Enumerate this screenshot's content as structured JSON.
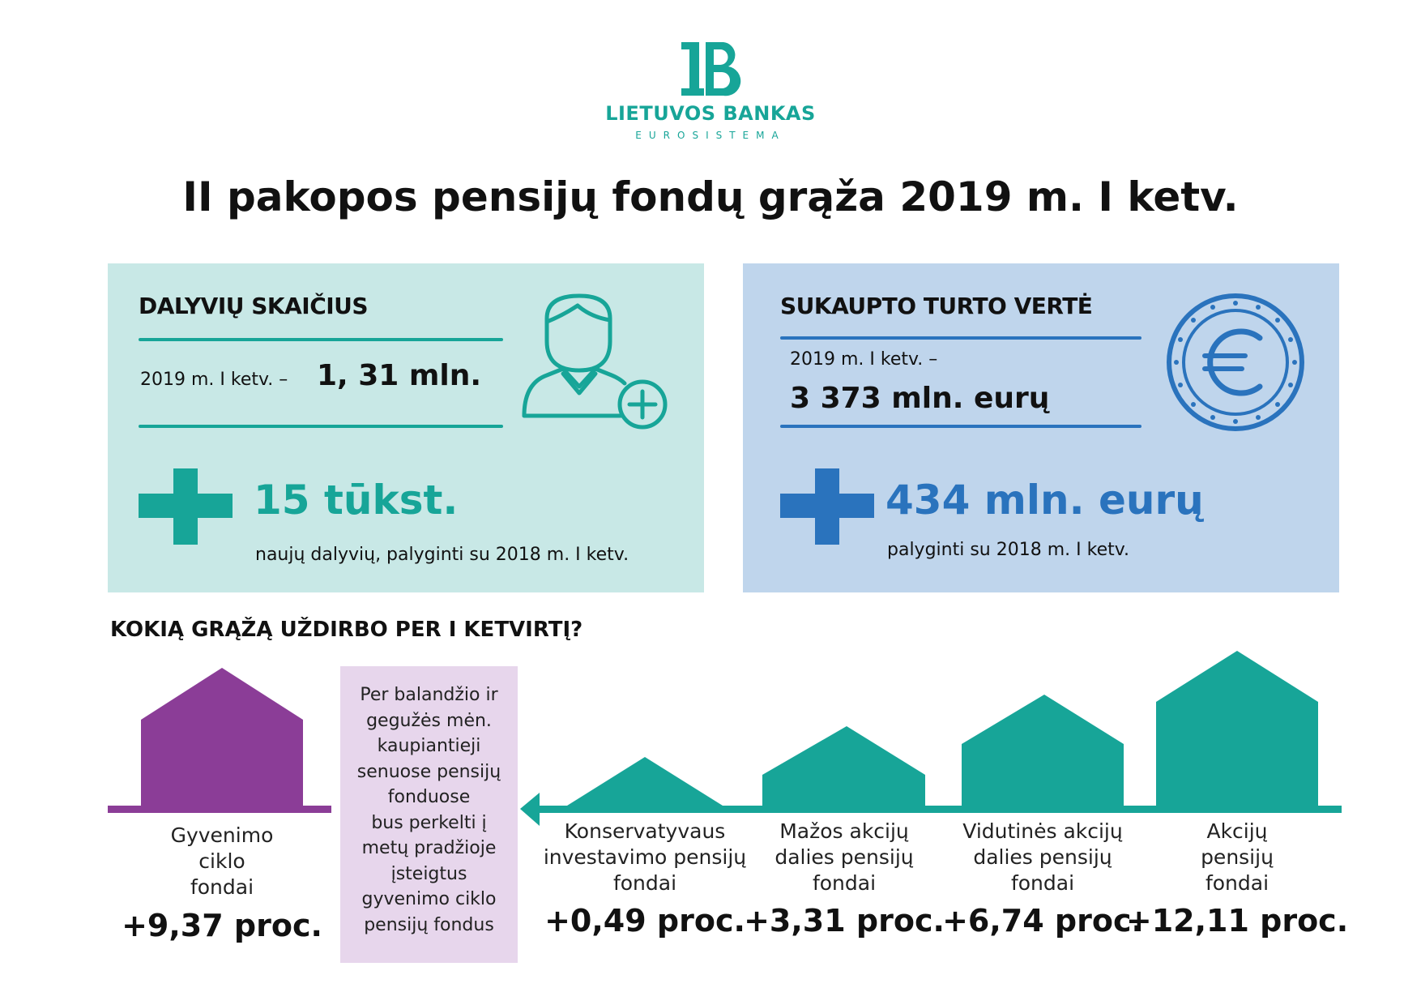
{
  "brand": {
    "name": "LIETUVOS BANKAS",
    "subtitle": "EUROSISTEMA",
    "logo_icon": "lb-monogram-icon",
    "color": "#17a598"
  },
  "title": "II pakopos pensijų fondų grąža 2019 m. I ketv.",
  "participants": {
    "heading": "DALYVIŲ SKAIČIUS",
    "period_label": "2019 m. I ketv. –",
    "period_value": "1, 31 mln.",
    "increase_value": "15 tūkst.",
    "increase_caption": "naujų dalyvių, palyginti su 2018 m. I ketv.",
    "icon": "user-add-icon",
    "accent_color": "#17a598",
    "background": "#c8e8e6"
  },
  "assets": {
    "heading": "SUKAUPTO TURTO VERTĖ",
    "period_label": "2019 m. I ketv. –",
    "period_value": "3 373 mln. eurų",
    "increase_value": "434 mln. eurų",
    "increase_caption": "palyginti su 2018 m. I ketv.",
    "icon": "euro-coin-icon",
    "accent_color": "#2a73bd",
    "background": "#bfd5ec"
  },
  "returns": {
    "heading": "KOKIĄ GRĄŽĄ UŽDIRBO PER I KETVIRTĮ?",
    "note": "Per balandžio ir gegužės mėn. kaupiantieji senuose pensijų fonduose bus perkelti į metų pradžioje įsteigtus gyvenimo ciklo pensijų fondus",
    "note_lines": [
      "Per balandžio ir",
      "gegužės mėn.",
      "kaupiantieji",
      "senuose pensijų",
      "fonduose",
      "bus perkelti į",
      "metų pradžioje",
      "įsteigtus",
      "gyvenimo ciklo",
      "pensijų fondus"
    ],
    "lifecycle": {
      "label_lines": [
        "Gyvenimo",
        "ciklo",
        "fondai"
      ],
      "value": "+9,37 proc.",
      "color": "#8b3d97"
    },
    "funds": [
      {
        "label_lines": [
          "Konservatyvaus",
          "investavimo pensijų",
          "fondai"
        ],
        "value": "+0,49 proc."
      },
      {
        "label_lines": [
          "Mažos akcijų",
          "dalies pensijų",
          "fondai"
        ],
        "value": "+3,31 proc."
      },
      {
        "label_lines": [
          "Vidutinės akcijų",
          "dalies pensijų",
          "fondai"
        ],
        "value": "+6,74 proc."
      },
      {
        "label_lines": [
          "Akcijų",
          "pensijų",
          "fondai"
        ],
        "value": "+12,11 proc."
      }
    ],
    "fund_color": "#17a598"
  }
}
